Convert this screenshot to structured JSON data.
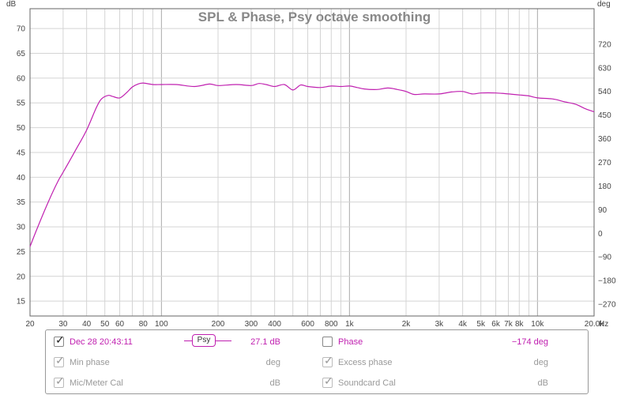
{
  "chart_data": {
    "type": "line",
    "title": "SPL & Phase, Psy octave smoothing",
    "y_left_unit": "dB",
    "y_right_unit": "deg",
    "x_unit": "Hz",
    "x_scale": "log",
    "xlim": [
      20,
      20000
    ],
    "ylim": [
      12,
      74
    ],
    "y_right_lim": [
      -315,
      855
    ],
    "grid": true,
    "x_ticks": [
      20,
      30,
      40,
      50,
      60,
      80,
      100,
      200,
      300,
      400,
      600,
      800,
      1000,
      2000,
      3000,
      4000,
      5000,
      6000,
      7000,
      8000,
      10000,
      20000
    ],
    "x_tick_labels": [
      "20",
      "30",
      "40",
      "50",
      "60",
      "80",
      "100",
      "200",
      "300",
      "400",
      "600",
      "800",
      "1k",
      "2k",
      "3k",
      "4k",
      "5k",
      "6k",
      "7k",
      "8k",
      "10k",
      "20.0k"
    ],
    "y_ticks": [
      15,
      20,
      25,
      30,
      35,
      40,
      45,
      50,
      55,
      60,
      65,
      70
    ],
    "y_tick_labels": [
      "15",
      "20",
      "25",
      "30",
      "35",
      "40",
      "45",
      "50",
      "55",
      "60",
      "65",
      "70"
    ],
    "y_right_ticks": [
      -270,
      -180,
      -90,
      0,
      90,
      180,
      270,
      360,
      450,
      540,
      630,
      720
    ],
    "y_right_tick_labels": [
      "-270",
      "-180",
      "-90",
      "0",
      "90",
      "180",
      "270",
      "360",
      "450",
      "540",
      "630",
      "720"
    ],
    "series": [
      {
        "name": "Dec 28 20:43:11",
        "color": "#c020b0",
        "x": [
          20,
          22,
          25,
          28,
          30,
          35,
          40,
          45,
          48,
          52,
          55,
          60,
          65,
          70,
          75,
          80,
          90,
          100,
          120,
          150,
          180,
          200,
          250,
          300,
          330,
          360,
          400,
          450,
          500,
          550,
          600,
          700,
          800,
          900,
          1000,
          1100,
          1200,
          1400,
          1600,
          1800,
          2000,
          2200,
          2500,
          3000,
          3500,
          4000,
          4500,
          5000,
          6000,
          7000,
          8000,
          9000,
          10000,
          12000,
          14000,
          16000,
          18000,
          20000
        ],
        "y": [
          26,
          30,
          35,
          39,
          41,
          45.5,
          49.5,
          54,
          55.8,
          56.5,
          56.3,
          56,
          57,
          58.2,
          58.8,
          59,
          58.7,
          58.7,
          58.7,
          58.3,
          58.8,
          58.5,
          58.7,
          58.5,
          58.9,
          58.7,
          58.3,
          58.7,
          57.6,
          58.6,
          58.3,
          58.1,
          58.4,
          58.3,
          58.4,
          58.1,
          57.8,
          57.7,
          58,
          57.7,
          57.3,
          56.7,
          56.8,
          56.8,
          57.2,
          57.3,
          56.8,
          57,
          57,
          56.8,
          56.6,
          56.4,
          56,
          55.8,
          55.2,
          54.7,
          53.8,
          53.2
        ]
      }
    ]
  },
  "legend": {
    "row1": {
      "checked_mark": "✓",
      "label": "Dec 28 20:43:11",
      "smoothing": "Psy",
      "value": "27.1 dB",
      "phase_label": "Phase",
      "phase_value": "-174 deg"
    },
    "row2": {
      "checked_mark": "✓",
      "label": "Min phase",
      "unit": "deg",
      "excess_label": "Excess phase",
      "excess_unit": "deg"
    },
    "row3": {
      "checked_mark": "✓",
      "label": "Mic/Meter Cal",
      "unit": "dB",
      "soundcard_label": "Soundcard Cal",
      "soundcard_unit": "dB"
    }
  }
}
